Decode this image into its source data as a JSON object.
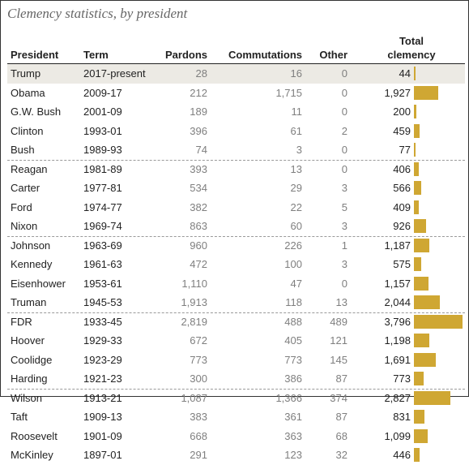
{
  "title": "Clemency statistics, by president",
  "headers": {
    "president": "President",
    "term": "Term",
    "pardons": "Pardons",
    "commutations": "Commutations",
    "other": "Other",
    "total_line1": "Total",
    "total_line2": "clemency"
  },
  "colors": {
    "bar": "#cfa733",
    "highlight_row": "#eceae4"
  },
  "chart_data": {
    "type": "table",
    "title": "Clemency statistics, by president",
    "columns": [
      "President",
      "Term",
      "Pardons",
      "Commutations",
      "Other",
      "Total clemency"
    ],
    "bar_column": "Total clemency",
    "bar_max": 3796,
    "group_breaks_after": [
      "Bush",
      "Nixon",
      "Truman",
      "Harding"
    ],
    "highlighted_row": "Trump",
    "rows": [
      {
        "president": "Trump",
        "term": "2017-present",
        "pardons": "28",
        "commutations": "16",
        "other": "0",
        "total": "44",
        "total_value": 44
      },
      {
        "president": "Obama",
        "term": "2009-17",
        "pardons": "212",
        "commutations": "1,715",
        "other": "0",
        "total": "1,927",
        "total_value": 1927
      },
      {
        "president": "G.W. Bush",
        "term": "2001-09",
        "pardons": "189",
        "commutations": "11",
        "other": "0",
        "total": "200",
        "total_value": 200
      },
      {
        "president": "Clinton",
        "term": "1993-01",
        "pardons": "396",
        "commutations": "61",
        "other": "2",
        "total": "459",
        "total_value": 459
      },
      {
        "president": "Bush",
        "term": "1989-93",
        "pardons": "74",
        "commutations": "3",
        "other": "0",
        "total": "77",
        "total_value": 77
      },
      {
        "president": "Reagan",
        "term": "1981-89",
        "pardons": "393",
        "commutations": "13",
        "other": "0",
        "total": "406",
        "total_value": 406
      },
      {
        "president": "Carter",
        "term": "1977-81",
        "pardons": "534",
        "commutations": "29",
        "other": "3",
        "total": "566",
        "total_value": 566
      },
      {
        "president": "Ford",
        "term": "1974-77",
        "pardons": "382",
        "commutations": "22",
        "other": "5",
        "total": "409",
        "total_value": 409
      },
      {
        "president": "Nixon",
        "term": "1969-74",
        "pardons": "863",
        "commutations": "60",
        "other": "3",
        "total": "926",
        "total_value": 926
      },
      {
        "president": "Johnson",
        "term": "1963-69",
        "pardons": "960",
        "commutations": "226",
        "other": "1",
        "total": "1,187",
        "total_value": 1187
      },
      {
        "president": "Kennedy",
        "term": "1961-63",
        "pardons": "472",
        "commutations": "100",
        "other": "3",
        "total": "575",
        "total_value": 575
      },
      {
        "president": "Eisenhower",
        "term": "1953-61",
        "pardons": "1,110",
        "commutations": "47",
        "other": "0",
        "total": "1,157",
        "total_value": 1157
      },
      {
        "president": "Truman",
        "term": "1945-53",
        "pardons": "1,913",
        "commutations": "118",
        "other": "13",
        "total": "2,044",
        "total_value": 2044
      },
      {
        "president": "FDR",
        "term": "1933-45",
        "pardons": "2,819",
        "commutations": "488",
        "other": "489",
        "total": "3,796",
        "total_value": 3796
      },
      {
        "president": "Hoover",
        "term": "1929-33",
        "pardons": "672",
        "commutations": "405",
        "other": "121",
        "total": "1,198",
        "total_value": 1198
      },
      {
        "president": "Coolidge",
        "term": "1923-29",
        "pardons": "773",
        "commutations": "773",
        "other": "145",
        "total": "1,691",
        "total_value": 1691
      },
      {
        "president": "Harding",
        "term": "1921-23",
        "pardons": "300",
        "commutations": "386",
        "other": "87",
        "total": "773",
        "total_value": 773
      },
      {
        "president": "Wilson",
        "term": "1913-21",
        "pardons": "1,087",
        "commutations": "1,366",
        "other": "374",
        "total": "2,827",
        "total_value": 2827
      },
      {
        "president": "Taft",
        "term": "1909-13",
        "pardons": "383",
        "commutations": "361",
        "other": "87",
        "total": "831",
        "total_value": 831
      },
      {
        "president": "Roosevelt",
        "term": "1901-09",
        "pardons": "668",
        "commutations": "363",
        "other": "68",
        "total": "1,099",
        "total_value": 1099
      },
      {
        "president": "McKinley",
        "term": "1897-01",
        "pardons": "291",
        "commutations": "123",
        "other": "32",
        "total": "446",
        "total_value": 446
      }
    ]
  }
}
